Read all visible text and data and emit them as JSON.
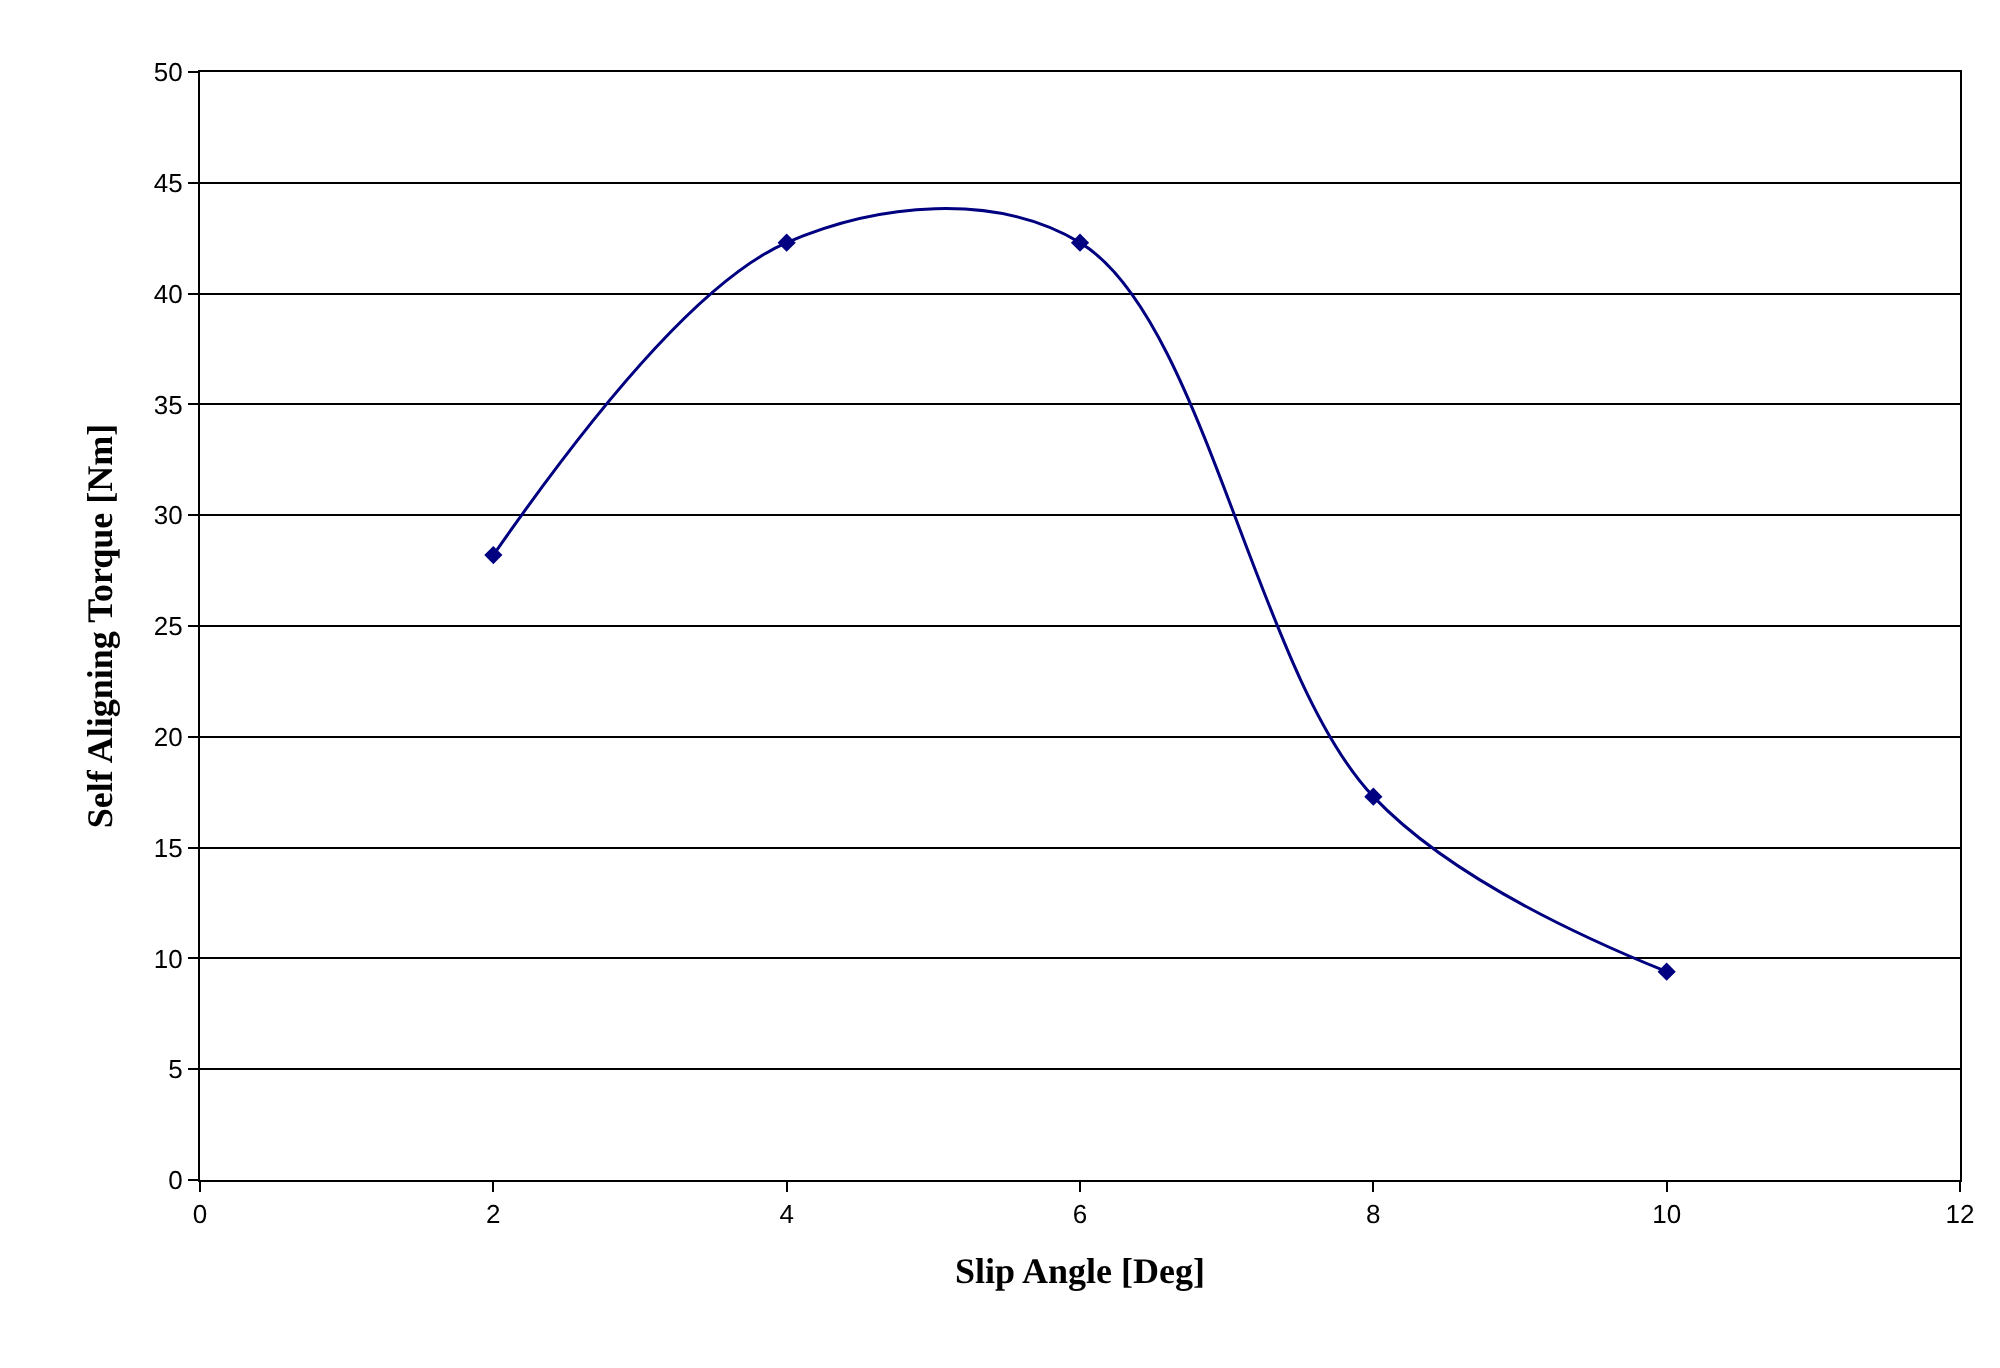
{
  "chart_data": {
    "type": "line",
    "xlabel": "Slip Angle [Deg]",
    "ylabel": "Self Aligning Torque [Nm]",
    "x": [
      2,
      4,
      6,
      8,
      10
    ],
    "series": [
      {
        "color": "#000080",
        "values": [
          28.2,
          42.3,
          42.3,
          17.3,
          9.4
        ]
      }
    ],
    "xlim": [
      0,
      12
    ],
    "xticks": [
      0,
      2,
      4,
      6,
      8,
      10,
      12
    ],
    "ylim": [
      0,
      50
    ],
    "yticks": [
      0,
      5,
      10,
      15,
      20,
      25,
      30,
      35,
      40,
      45,
      50
    ],
    "grid": "y",
    "legend": false,
    "marker": "diamond",
    "line_style": "solid"
  }
}
